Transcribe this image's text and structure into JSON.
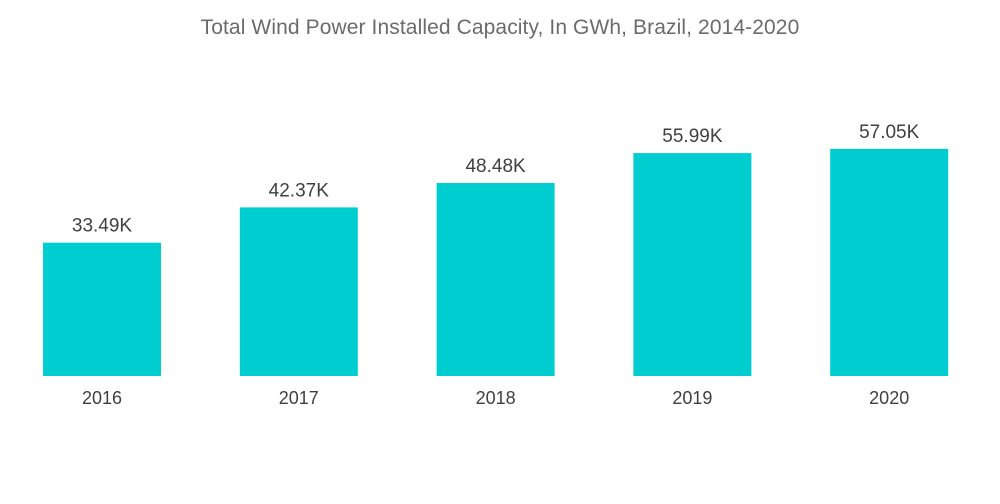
{
  "chart_data": {
    "type": "bar",
    "title": "Total Wind Power Installed Capacity, In GWh, Brazil, 2014-2020",
    "categories": [
      "2016",
      "2017",
      "2018",
      "2019",
      "2020"
    ],
    "values": [
      33.49,
      42.37,
      48.48,
      55.99,
      57.05
    ],
    "data_labels": [
      "33.49K",
      "42.37K",
      "48.48K",
      "55.99K",
      "57.05K"
    ],
    "unit": "K",
    "xlabel": "",
    "ylabel": "",
    "ylim": [
      0,
      66
    ],
    "grid": false,
    "legend": "none",
    "bar_color": "#00cdd0"
  }
}
